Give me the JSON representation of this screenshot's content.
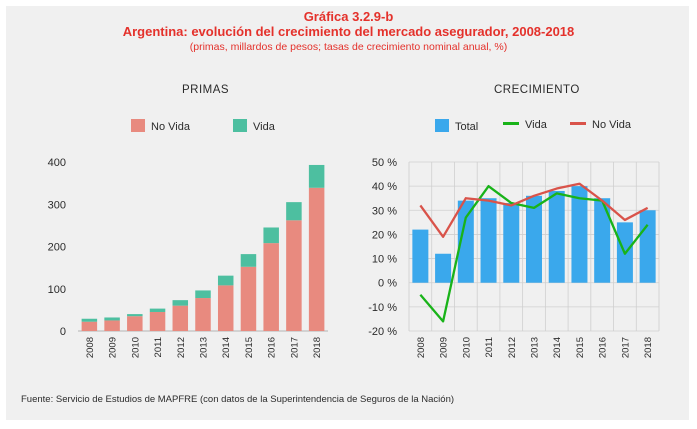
{
  "header": {
    "line1": "Gráfica 3.2.9-b",
    "line2": "Argentina: evolución del crecimiento del mercado asegurador, 2008-2018",
    "line3": "(primas, millardos de pesos; tasas de crecimiento nominal anual, %)"
  },
  "source": "Fuente: Servicio de Estudios de MAPFRE (con datos de la Superintendencia de Seguros de la Nación)",
  "colors": {
    "no_vida_bar": "#e88a7f",
    "vida_bar": "#4dbfa0",
    "total_bar": "#3aa8ec",
    "vida_line": "#19b319",
    "no_vida_line": "#d9534a",
    "panel_bg": "#f0f0f0",
    "title": "#e4312b"
  },
  "chart_data": [
    {
      "type": "bar",
      "stacked": true,
      "title": "PRIMAS",
      "categories": [
        "2008",
        "2009",
        "2010",
        "2011",
        "2012",
        "2013",
        "2014",
        "2015",
        "2016",
        "2017",
        "2018"
      ],
      "series": [
        {
          "name": "No Vida",
          "values": [
            22,
            25,
            35,
            45,
            60,
            78,
            108,
            152,
            208,
            262,
            339
          ]
        },
        {
          "name": "Vida",
          "values": [
            7,
            7,
            5,
            8,
            13,
            18,
            23,
            30,
            37,
            43,
            54
          ]
        }
      ],
      "ylim": [
        0,
        400
      ],
      "yticks": [
        0,
        100,
        200,
        300,
        400
      ],
      "ytick_labels": [
        "0",
        "100",
        "200",
        "300",
        "400"
      ],
      "legend": "top",
      "grid": false
    },
    {
      "type": "bar",
      "title": "CRECIMIENTO",
      "categories": [
        "2008",
        "2009",
        "2010",
        "2011",
        "2012",
        "2013",
        "2014",
        "2015",
        "2016",
        "2017",
        "2018"
      ],
      "series": [
        {
          "name": "Total",
          "type": "bar",
          "values": [
            22,
            12,
            34,
            35,
            33,
            36,
            38,
            40,
            35,
            25,
            30
          ]
        },
        {
          "name": "Vida",
          "type": "line",
          "values": [
            -5,
            -16,
            27,
            40,
            33,
            31,
            37,
            35,
            34,
            12,
            24
          ]
        },
        {
          "name": "No Vida",
          "type": "line",
          "values": [
            32,
            19,
            35,
            34,
            32,
            36,
            39,
            41,
            34,
            26,
            31
          ]
        }
      ],
      "ylim": [
        -20,
        50
      ],
      "yticks": [
        -20,
        -10,
        0,
        10,
        20,
        30,
        40,
        50
      ],
      "ytick_labels": [
        "-20 %",
        "-10 %",
        "0 %",
        "10 %",
        "20 %",
        "30 %",
        "40 %",
        "50 %"
      ],
      "legend": "top",
      "grid": true
    }
  ]
}
